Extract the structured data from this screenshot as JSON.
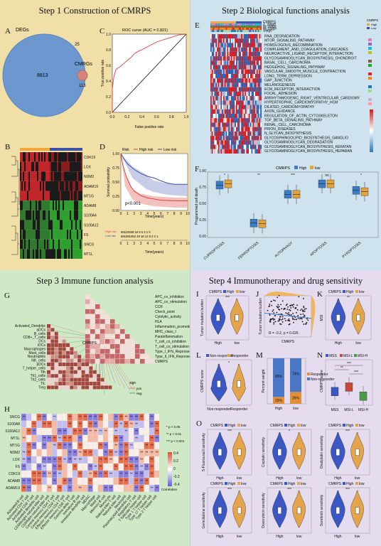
{
  "step1": {
    "title": "Step 1 Construction of CMRPS",
    "panel_a": {
      "letter": "A",
      "label_degs": "DEGs",
      "label_cmrgs": "CMRGs",
      "n_degs": "8813",
      "n_overlap": "25",
      "n_cmrgs": "113"
    },
    "panel_b": {
      "letter": "B",
      "genes": [
        "CDK19",
        "LOX",
        "NDM2",
        "ADAM19",
        "MT1G",
        "ADAM8",
        "S100A4",
        "S100A12",
        "FS",
        "SNCG",
        "MT1L"
      ]
    },
    "panel_c": {
      "letter": "C",
      "title": "ROC curve (AUC = 0.821)",
      "xlabel": "False positive rate",
      "ylabel": "True positive rate",
      "ticks": [
        "0.0",
        "0.2",
        "0.4",
        "0.6",
        "0.8",
        "1.0"
      ]
    },
    "panel_d": {
      "letter": "D",
      "legend_title": "Risk",
      "high_risk": "High risk",
      "low_risk": "Low risk",
      "pvalue": "p<0.001",
      "xlabel": "Time(years)",
      "ylabel": "Survival probability",
      "xticks": [
        "0",
        "1",
        "2",
        "3",
        "4",
        "5",
        "6",
        "7",
        "8",
        "9",
        "10"
      ],
      "yticks": [
        "0.00",
        "0.25",
        "0.50",
        "0.75",
        "1.00"
      ],
      "risk_table_row_high": "66110638 16 9 5 3 1 0",
      "risk_table_row_low": "681081062 29 18 12 6 2 2 1",
      "risk_table_high": "High risk",
      "risk_table_low": "Low risk",
      "risk_table_xlabel": "Time(years)"
    }
  },
  "step2": {
    "title": "Step 2 Biological functions analysis",
    "panel_e": {
      "letter": "E",
      "pathways": [
        "RNA_DEGRADATION",
        "MTOR_SIGNALING_PATHWAY",
        "HOMOLOGOUS_RECOMBINATION",
        "COMPLEMENT_AND_COAGULATION_CASCADES",
        "NEUROACTIVE_LIGAND_RECEPTOR_INTERACTION",
        "GLYCOSAMINOGLYCAN_BIOSYNTHESIS_CHONDROIT",
        "BASAL_CELL_CARCINOMA",
        "HEDGEHOG_SIGNALING_PATHWAY",
        "VASCULAR_SMOOTH_MUSCLE_CONTRACTION",
        "LONG_TERM_DEPRESSION",
        "GAP_JUNCTION",
        "MELANOGENESIS",
        "ECM_RECEPTOR_INTERACTION",
        "FOCAL_ADHESION",
        "ARRHYTHMOGENIC_RIGHT_VENTRICULAR_CARDIOMY",
        "HYPERTROPHIC_CARDIOMYOPATHY_HCM",
        "DILATED_CARDIOMYOPATHY",
        "AXON_GUIDANCE",
        "REGULATION_OF_ACTIN_CYTOSKELETON",
        "TGF_BETA_SIGNALING_PATHWAY",
        "RENAL_CELL_CARCINOMA",
        "PRION_DISEASES",
        "N_GLYCAN_BIOSYNTHESIS",
        "GLYCOSPHINGOLIPID_BIOSYNTHESIS_GANGLIO",
        "GLYCOSAMINOGLYCAN_DEGRADATION",
        "GLYCOSAMINOGLYCAN_BIOSYNTHESIS_KERATAN",
        "GLYCOSAMINOGLYCAN_BIOSYNTHESIS_HEPARAN"
      ],
      "annot_labels": [
        "CMRPS",
        "T_stage",
        "N_stage",
        "M_stage",
        "Stage"
      ],
      "legend_title": "CMRPS",
      "legend_items": [
        "High",
        "Low"
      ]
    },
    "panel_f": {
      "letter": "F",
      "title": "CMRPS",
      "legend": [
        "High",
        "low"
      ],
      "ylabel": "Programmed cell death",
      "categories": [
        "CUPROPTOSIS",
        "FERROPTOSIS",
        "AUTOPHAGY",
        "APOPTOSIS",
        "PYROPTOSIS"
      ],
      "yticks": [
        "0.00",
        "0.25",
        "0.50",
        "0.75",
        "1.00"
      ],
      "sig": [
        "*",
        "**",
        "***",
        "ns",
        "*"
      ]
    }
  },
  "step3": {
    "title": "Step 3 Immune function analysis",
    "panel_g": {
      "letter": "G",
      "label_cmrps": "CMRPS",
      "functions": [
        "APC_co_inhibition",
        "APC_co_stimulation",
        "CCR",
        "Check_point",
        "Cytolytic_activity",
        "HLA",
        "Inflammation_promoting",
        "MHC_class_I",
        "Parainflammation",
        "T_cell_co_inhibition",
        "T_cell_co_stimulation",
        "Type_I_IFN_Reponse",
        "Type_II_IFN_Reponse",
        "CMRPS"
      ],
      "cells": [
        "Activated_Dendritic",
        "aDCs",
        "B_cells",
        "CD8+_T_cells",
        "DCs",
        "iDCs",
        "Macrophages",
        "Mast_cells",
        "Neutrophils",
        "NK_cells",
        "pDCs",
        "T_helper_cells",
        "Tfh",
        "Th1_cells",
        "Th2_cells",
        "TIL",
        "Treg"
      ],
      "legend_sign": "sign",
      "legend_pos": "pos",
      "legend_neg": "neg"
    },
    "panel_h": {
      "letter": "H",
      "genes": [
        "SNCG",
        "S100A8",
        "S100A12",
        "MT1L",
        "MT1G",
        "NDM2",
        "LOX",
        "FS",
        "CDK19",
        "ADAM8",
        "ADAM19"
      ],
      "legend_title": "Correlation",
      "legend_ticks": [
        "0.4",
        "0.2",
        "0",
        "-0.2",
        "-0.4"
      ],
      "sig_legend": [
        "* p < 0.05",
        "** p < 0.01",
        "*** p < 0.001"
      ],
      "cells": [
        "Activated B cell",
        "Activated CD4 T cell",
        "Activated CD8 T cell",
        "Activated dendritic cell",
        "CD56bright natural killer cell",
        "CD56dim natural killer cell",
        "Central memory CD4 T cell",
        "Central memory CD8 T cell",
        "Effector memory CD4 T cell",
        "Effector memory CD8 T cell",
        "Gamma delta T cell",
        "Immature B cell",
        "Immature dendritic cell",
        "MDSC",
        "Macrophage",
        "Mast cell",
        "Memory B cell",
        "Monocyte",
        "Natural killer T cell",
        "Natural killer cell",
        "Neutrophil",
        "Plasmacytoid dendritic cell",
        "Regulatory T cell",
        "T follicular helper cell",
        "Type 1 T helper cell",
        "Type 17 T helper cell",
        "Type 2 T helper cell"
      ]
    }
  },
  "step4": {
    "title": "Step 4 Immunotherapy and drug sensitivity",
    "legend_title": "CMRPS",
    "legend_items": [
      "High",
      "low"
    ],
    "xcats": [
      "High",
      "low"
    ],
    "panel_i": {
      "letter": "I",
      "ylabel": "Tumor mutation burden",
      "sig": "***"
    },
    "panel_j": {
      "letter": "J",
      "ylabel": "Tumor mutation burden",
      "xlabel": "CMRPS",
      "stat": "R = -0.2, p = 0.026"
    },
    "panel_k": {
      "letter": "K",
      "ylabel": "MSI",
      "sig": "**"
    },
    "panel_l": {
      "letter": "L",
      "legend": [
        "Non-responder",
        "Responder"
      ],
      "xcats": [
        "Non-responder",
        "Responder"
      ],
      "ylabel": "CMRPS score",
      "sig": "*"
    },
    "panel_m": {
      "letter": "M",
      "ylabel": "Percent weight",
      "xcats": [
        "High",
        "low"
      ],
      "legend": [
        "Responder",
        "Non-responder"
      ],
      "pct_high": [
        "15%",
        "85%"
      ],
      "pct_low": [
        "26%",
        "74%"
      ]
    },
    "panel_n": {
      "letter": "N",
      "legend": [
        "MSS",
        "MSI-L",
        "MSI-H"
      ],
      "xcats": [
        "MSS",
        "MSI-L",
        "MSI-H"
      ],
      "ylabel": "CMRPS score",
      "sig": [
        "**",
        "***",
        "***"
      ]
    },
    "panel_o": {
      "letter": "O",
      "ylabels": [
        "5-Fluorouracil sensitivity",
        "Cisplatin sensitivity",
        "Oxaliplatin sensitivity",
        "Gemcitabine sensitivity",
        "Doxorubicin sensitivity",
        "Sorafenib sensitivity"
      ],
      "sig": [
        "***",
        "*",
        "***",
        "***",
        "***",
        "***"
      ]
    }
  }
}
